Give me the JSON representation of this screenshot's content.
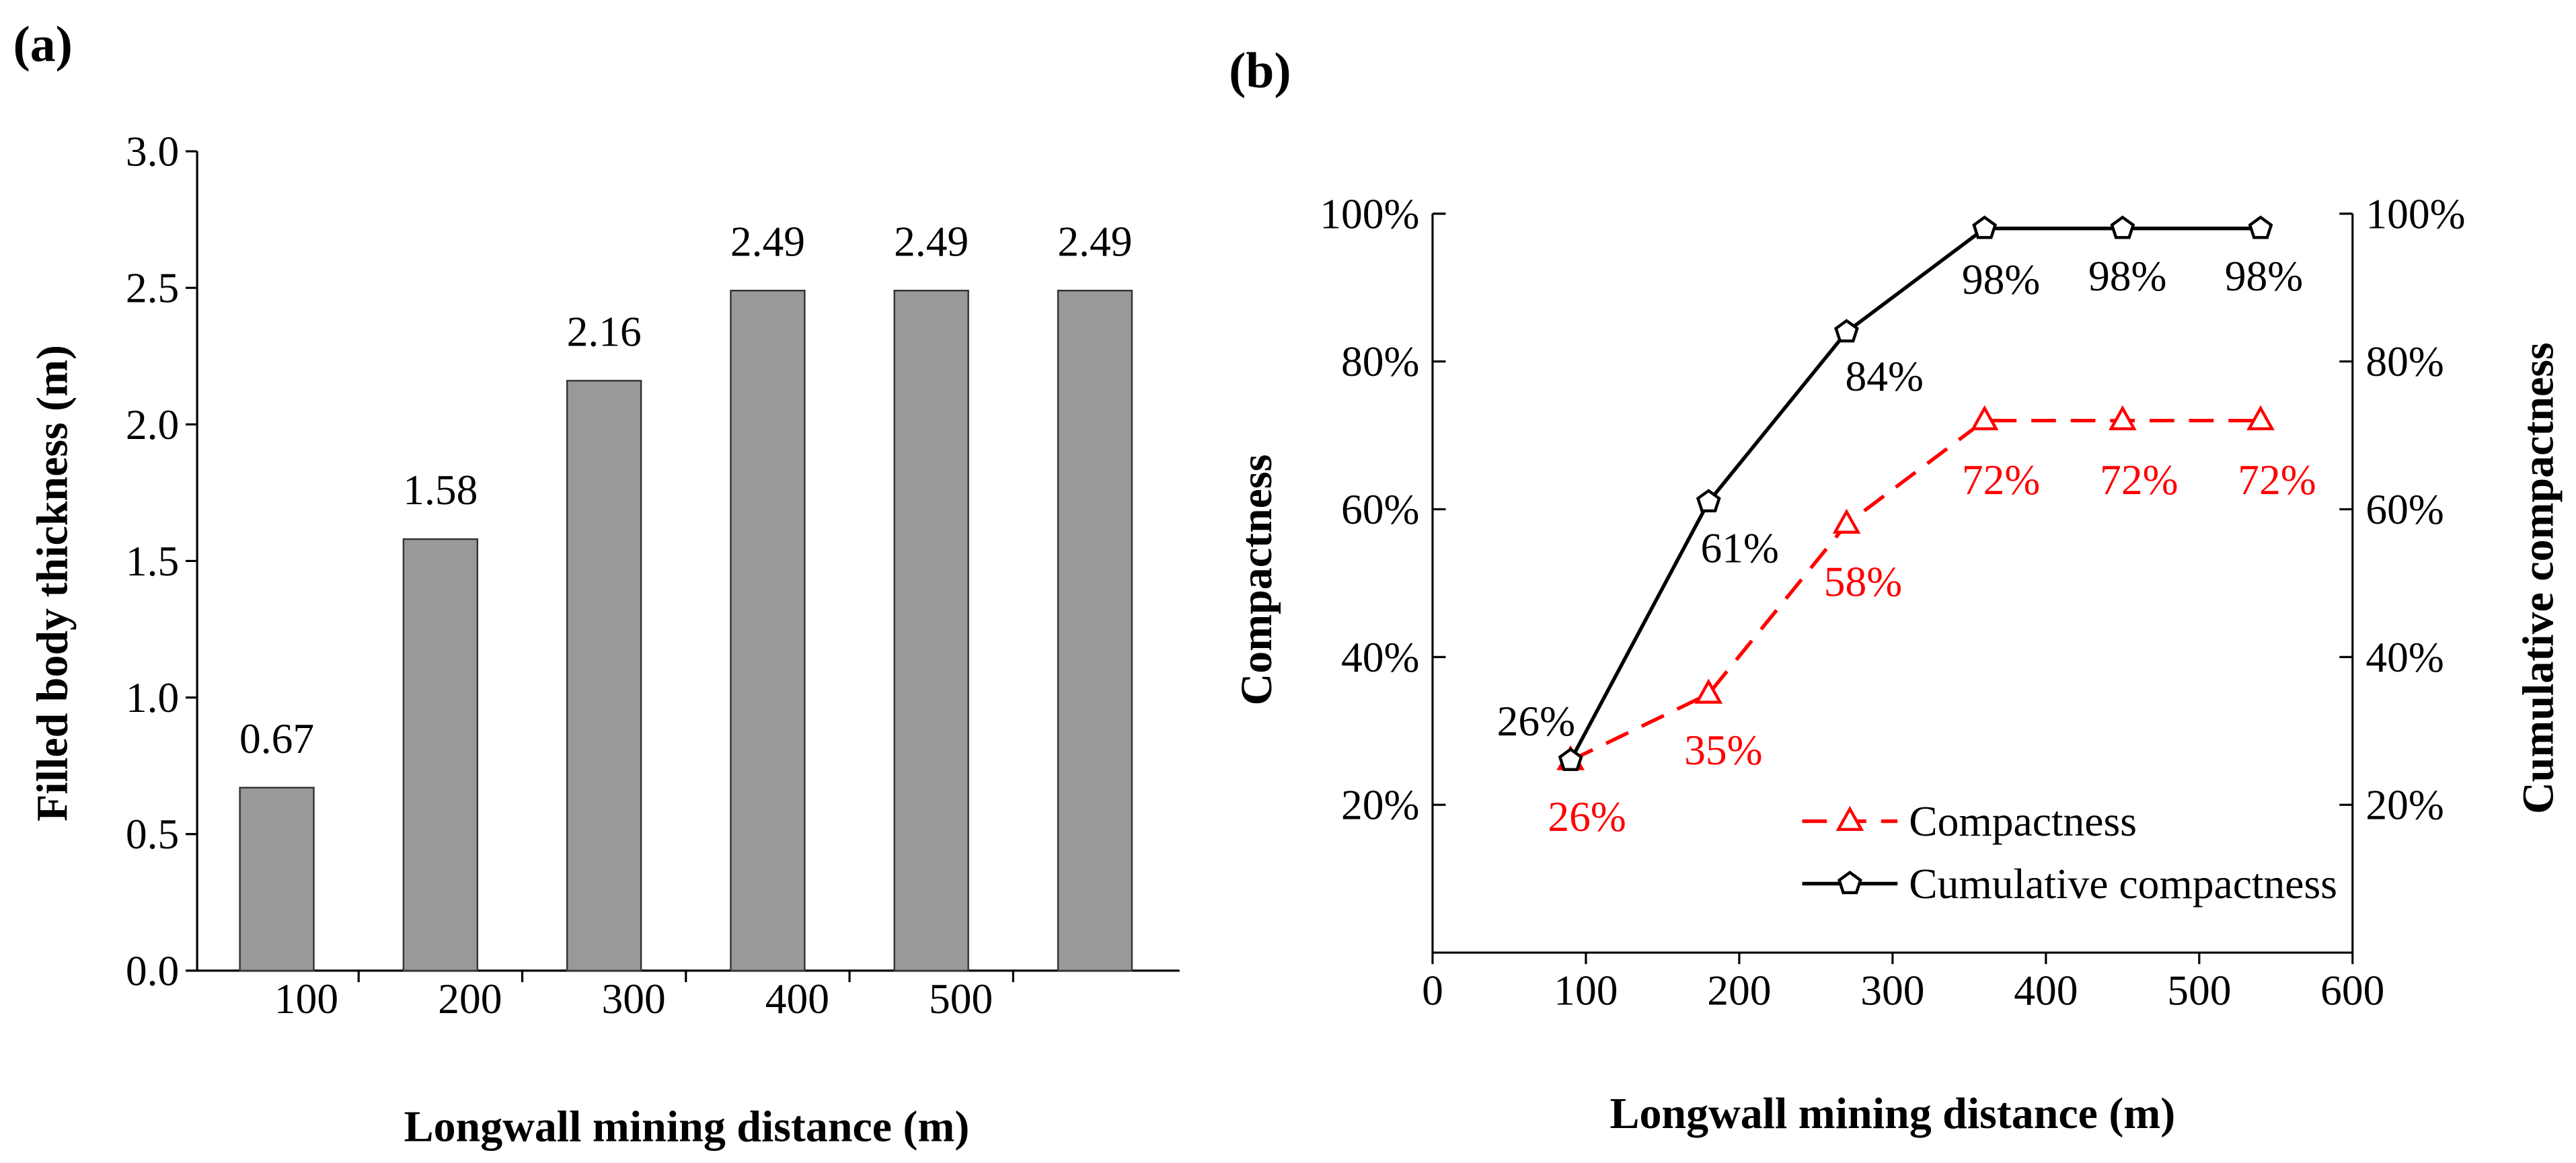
{
  "chart_data": [
    {
      "panel": "(a)",
      "type": "bar",
      "values": [
        0.67,
        1.58,
        2.16,
        2.49,
        2.49,
        2.49
      ],
      "data_labels": [
        "0.67",
        "1.58",
        "2.16",
        "2.49",
        "2.49",
        "2.49"
      ],
      "x_tick_labels": [
        "100",
        "200",
        "300",
        "400",
        "500"
      ],
      "xlabel": "Longwall mining distance (m)",
      "ylabel": "Filled body thickness (m)",
      "ylim": [
        0,
        3.0
      ],
      "y_ticks": [
        0,
        0.5,
        1.0,
        1.5,
        2.0,
        2.5,
        3.0
      ],
      "y_tick_labels": [
        "0.0",
        "0.5",
        "1.0",
        "1.5",
        "2.0",
        "2.5",
        "3.0"
      ],
      "bar_color": "#999999",
      "bar_edge_color": "#333333"
    },
    {
      "panel": "(b)",
      "type": "line",
      "x": [
        90,
        180,
        270,
        360,
        450,
        540
      ],
      "series": [
        {
          "name": "Compactness",
          "values": [
            26,
            35,
            58,
            72,
            72,
            72
          ],
          "data_labels": [
            "26%",
            "35%",
            "58%",
            "72%",
            "72%",
            "72%"
          ],
          "color": "#ff0000",
          "line_style": "dashed",
          "marker": "triangle"
        },
        {
          "name": "Cumulative compactness",
          "values": [
            26,
            61,
            84,
            98,
            98,
            98
          ],
          "data_labels": [
            "26%",
            "61%",
            "84%",
            "98%",
            "98%",
            "98%"
          ],
          "color": "#000000",
          "line_style": "solid",
          "marker": "pentagon"
        }
      ],
      "xlim": [
        0,
        600
      ],
      "x_ticks": [
        0,
        100,
        200,
        300,
        400,
        500,
        600
      ],
      "x_tick_labels": [
        "0",
        "100",
        "200",
        "300",
        "400",
        "500",
        "600"
      ],
      "ylim": [
        0,
        100
      ],
      "y_ticks": [
        20,
        40,
        60,
        80,
        100
      ],
      "y_tick_labels": [
        "20%",
        "40%",
        "60%",
        "80%",
        "100%"
      ],
      "xlabel": "Longwall mining distance (m)",
      "ylabel_left": "Compactness",
      "ylabel_right": "Cumulative compactness",
      "legend_position": "bottom-right"
    }
  ]
}
